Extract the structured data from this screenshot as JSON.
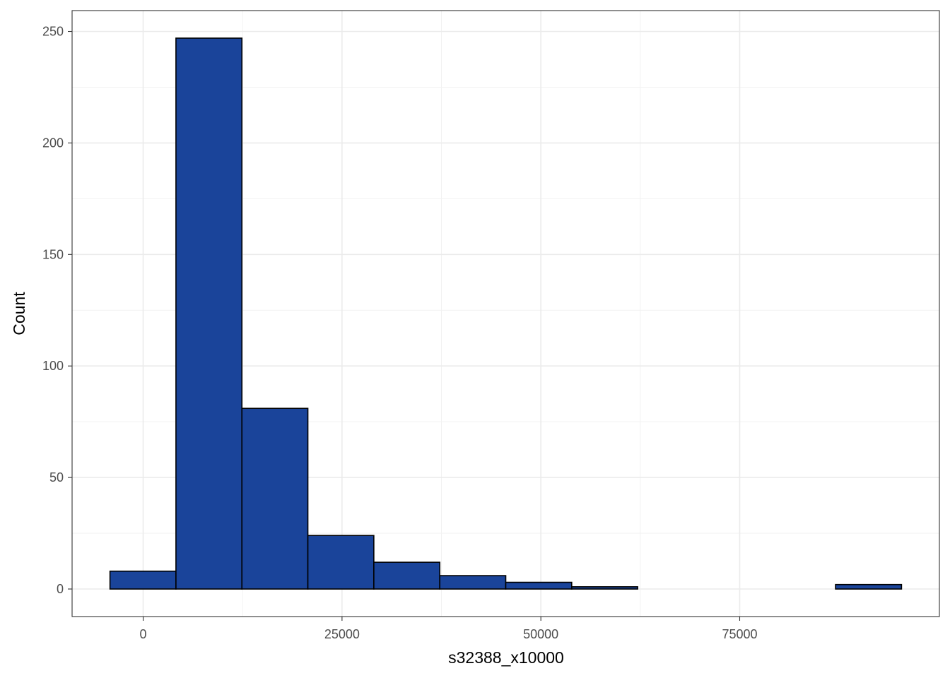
{
  "chart_data": {
    "type": "bar",
    "title": "",
    "xlabel": "s32388_x10000",
    "ylabel": "Count",
    "bins": [
      {
        "x0": -4173,
        "x1": 4120,
        "count": 8
      },
      {
        "x0": 4120,
        "x1": 12413,
        "count": 247
      },
      {
        "x0": 12413,
        "x1": 20706,
        "count": 81
      },
      {
        "x0": 20706,
        "x1": 28999,
        "count": 24
      },
      {
        "x0": 28999,
        "x1": 37292,
        "count": 12
      },
      {
        "x0": 37292,
        "x1": 45585,
        "count": 6
      },
      {
        "x0": 45585,
        "x1": 53878,
        "count": 3
      },
      {
        "x0": 53878,
        "x1": 62171,
        "count": 1
      },
      {
        "x0": 62171,
        "x1": 70464,
        "count": 0
      },
      {
        "x0": 70464,
        "x1": 78757,
        "count": 0
      },
      {
        "x0": 78757,
        "x1": 87050,
        "count": 0
      },
      {
        "x0": 87050,
        "x1": 95343,
        "count": 2
      }
    ],
    "x_ticks": [
      0,
      25000,
      50000,
      75000
    ],
    "y_ticks": [
      0,
      50,
      100,
      150,
      200,
      250
    ],
    "xlim": [
      -8937,
      100107
    ],
    "ylim": [
      -12.35,
      259.35
    ],
    "grid": true,
    "legend": "none",
    "bar_color": "#1a449a",
    "bar_edge_color": "#000000"
  }
}
